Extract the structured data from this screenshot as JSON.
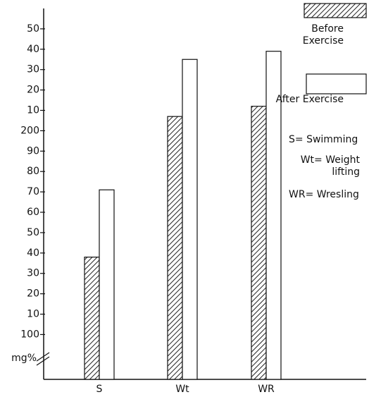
{
  "chart_data": {
    "type": "bar",
    "y_label": "mg%",
    "categories": [
      "S",
      "Wt",
      "WR"
    ],
    "series": [
      {
        "name": "Before Exercise",
        "color": "#222222",
        "pattern": "hatch",
        "values": [
          138,
          207,
          212
        ]
      },
      {
        "name": "After Exercise",
        "color": "#ffffff",
        "pattern": "none",
        "values": [
          171,
          235,
          239
        ]
      }
    ],
    "ylim": [
      78,
      260
    ],
    "yticks": [
      100,
      {
        "value": 110,
        "label": "10"
      },
      {
        "value": 120,
        "label": "20"
      },
      {
        "value": 130,
        "label": "30"
      },
      {
        "value": 140,
        "label": "40"
      },
      {
        "value": 150,
        "label": "50"
      },
      {
        "value": 160,
        "label": "60"
      },
      {
        "value": 170,
        "label": "70"
      },
      {
        "value": 180,
        "label": "80"
      },
      {
        "value": 190,
        "label": "90"
      },
      200,
      {
        "value": 210,
        "label": "10"
      },
      {
        "value": 220,
        "label": "20"
      },
      {
        "value": 230,
        "label": "30"
      },
      {
        "value": 240,
        "label": "40"
      },
      {
        "value": 250,
        "label": "50"
      }
    ],
    "annotations": [
      "S= Swimming",
      "Wt= Weight lifting",
      "WR= Wresling"
    ],
    "grid": false
  }
}
